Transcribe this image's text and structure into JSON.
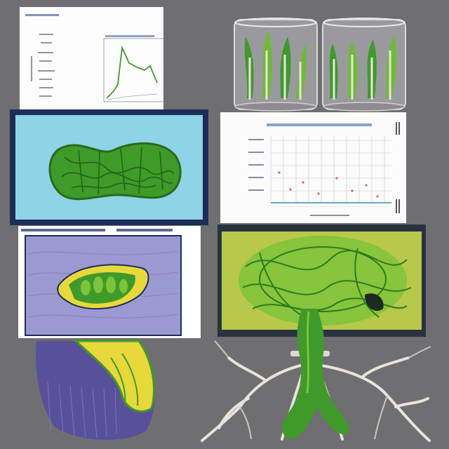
{
  "collage": {
    "description_free": true,
    "panels": [
      {
        "id": "line-chart-card",
        "kind": "illegible-chart"
      },
      {
        "id": "plant-jars",
        "kind": "illustration"
      },
      {
        "id": "leaf-cell-screen",
        "kind": "illustration"
      },
      {
        "id": "scatter-chart-card",
        "kind": "illegible-chart"
      },
      {
        "id": "stomata-slide",
        "kind": "illustration"
      },
      {
        "id": "root-network-screen",
        "kind": "illustration"
      },
      {
        "id": "cross-section-cone",
        "kind": "illustration"
      },
      {
        "id": "root-sprout",
        "kind": "illustration"
      }
    ]
  },
  "colors": {
    "background": "#6f6e70",
    "leaf_green": "#3f9a2a",
    "bright_green": "#7cc43a",
    "yellow": "#e8d83a",
    "purple": "#5a4f9a",
    "navy_frame": "#1c2d5a",
    "cyan_screen": "#8fd3e6",
    "root_white": "#e6e4dc"
  }
}
